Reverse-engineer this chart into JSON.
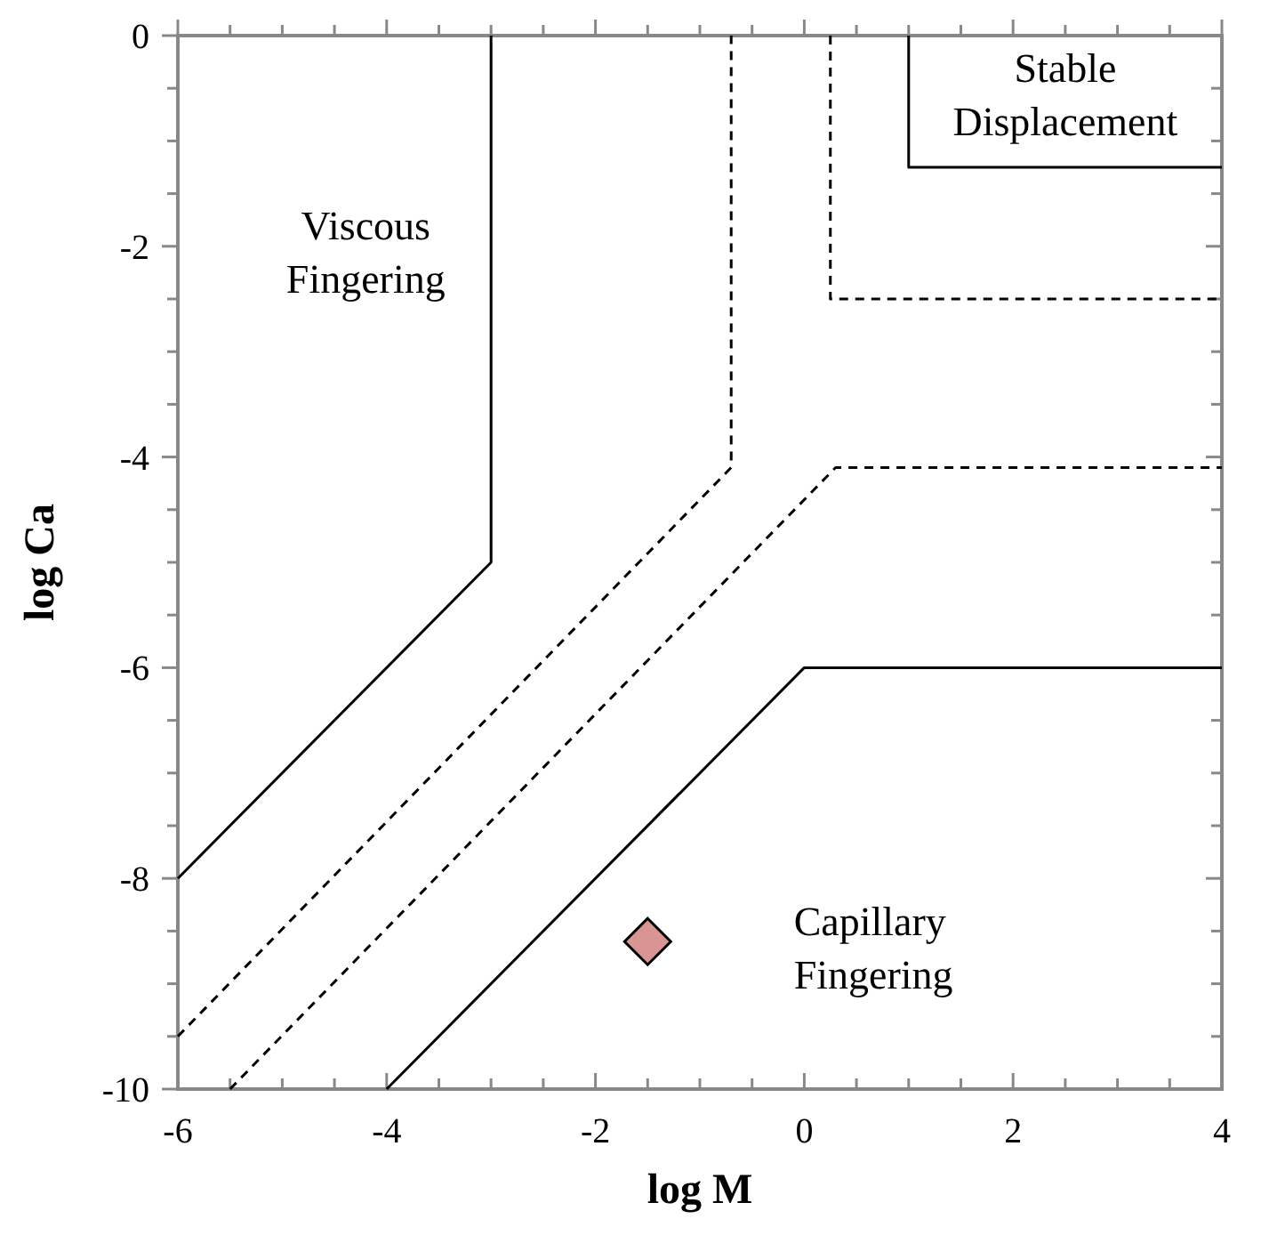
{
  "chart_data": {
    "type": "line",
    "xlabel": "log M",
    "ylabel": "log Ca",
    "xlim": [
      -6,
      4
    ],
    "ylim": [
      -10,
      0
    ],
    "xticks": [
      -6,
      {
        "value": -5.5,
        "label": null
      },
      {
        "value": -5,
        "label": null
      },
      {
        "value": -4.5,
        "label": null
      },
      -4,
      {
        "value": -3.5,
        "label": null
      },
      {
        "value": -3,
        "label": null
      },
      {
        "value": -2.5,
        "label": null
      },
      -2,
      {
        "value": -1.5,
        "label": null
      },
      {
        "value": -1,
        "label": null
      },
      {
        "value": -0.5,
        "label": null
      },
      0,
      {
        "value": 0.5,
        "label": null
      },
      {
        "value": 1,
        "label": null
      },
      {
        "value": 1.5,
        "label": null
      },
      2,
      {
        "value": 2.5,
        "label": null
      },
      {
        "value": 3,
        "label": null
      },
      {
        "value": 3.5,
        "label": null
      },
      4
    ],
    "yticks": [
      -10,
      {
        "value": -9.5,
        "label": null
      },
      {
        "value": -9,
        "label": null
      },
      {
        "value": -8.5,
        "label": null
      },
      -8,
      {
        "value": -7.5,
        "label": null
      },
      {
        "value": -7,
        "label": null
      },
      {
        "value": -6.5,
        "label": null
      },
      -6,
      {
        "value": -5.5,
        "label": null
      },
      {
        "value": -5,
        "label": null
      },
      {
        "value": -4.5,
        "label": null
      },
      -4,
      {
        "value": -3.5,
        "label": null
      },
      {
        "value": -3,
        "label": null
      },
      {
        "value": -2.5,
        "label": null
      },
      -2,
      {
        "value": -1.5,
        "label": null
      },
      {
        "value": -1,
        "label": null
      },
      {
        "value": -0.5,
        "label": null
      },
      0
    ],
    "grid": false,
    "series": [
      {
        "color": "#000000",
        "line_style": "solid",
        "x": [
          -6,
          -3,
          -3
        ],
        "values": [
          -8,
          -5,
          0
        ]
      },
      {
        "color": "#000000",
        "line_style": "dashed",
        "x": [
          -6,
          -0.7,
          -0.7
        ],
        "values": [
          -9.5,
          -4.1,
          0
        ]
      },
      {
        "color": "#000000",
        "line_style": "dashed",
        "x": [
          -5.5,
          0.3,
          4
        ],
        "values": [
          -10,
          -4.1,
          -4.1
        ]
      },
      {
        "color": "#000000",
        "line_style": "dashed",
        "x": [
          0.25,
          0.25,
          4
        ],
        "values": [
          0,
          -2.5,
          -2.5
        ]
      },
      {
        "color": "#000000",
        "line_style": "solid",
        "x": [
          -4,
          0,
          4
        ],
        "values": [
          -10,
          -6,
          -6
        ]
      },
      {
        "color": "#000000",
        "line_style": "solid",
        "x": [
          1,
          1,
          4
        ],
        "values": [
          0,
          -1.25,
          -1.25
        ]
      },
      {
        "type": "scatter",
        "color": "#d99594",
        "marker": "diamond",
        "x": [
          -1.5
        ],
        "values": [
          -8.6
        ]
      }
    ],
    "annotations": [
      "Viscous\nFingering",
      "Stable\nDisplacement",
      "Capillary\nFingering"
    ]
  }
}
